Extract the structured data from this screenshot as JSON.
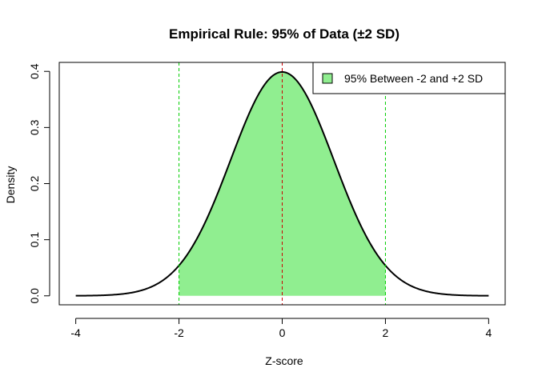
{
  "chart_data": {
    "type": "area",
    "title": "Empirical Rule: 95% of Data (±2 SD)",
    "xlabel": "Z-score",
    "ylabel": "Density",
    "xlim": [
      -4,
      4
    ],
    "ylim": [
      0,
      0.4
    ],
    "x_ticks": [
      -4,
      -2,
      0,
      2,
      4
    ],
    "y_ticks": [
      0.0,
      0.1,
      0.2,
      0.3,
      0.4
    ],
    "x_tick_labels": [
      "-4",
      "-2",
      "0",
      "2",
      "4"
    ],
    "y_tick_labels": [
      "0.0",
      "0.1",
      "0.2",
      "0.3",
      "0.4"
    ],
    "curve": {
      "distribution": "standard normal density",
      "x": [
        -4,
        -3.5,
        -3,
        -2.5,
        -2,
        -1.5,
        -1,
        -0.5,
        0,
        0.5,
        1,
        1.5,
        2,
        2.5,
        3,
        3.5,
        4
      ],
      "y": [
        0.0001,
        0.0009,
        0.0044,
        0.0175,
        0.054,
        0.1295,
        0.242,
        0.3521,
        0.3989,
        0.3521,
        0.242,
        0.1295,
        0.054,
        0.0175,
        0.0044,
        0.0009,
        0.0001
      ],
      "color": "#000000"
    },
    "shaded_region": {
      "from": -2,
      "to": 2,
      "color": "#90EE90"
    },
    "reference_lines": [
      {
        "x": -2,
        "color": "#00CD00",
        "style": "dashed"
      },
      {
        "x": 0,
        "color": "#CD0000",
        "style": "dashed"
      },
      {
        "x": 2,
        "color": "#00CD00",
        "style": "dashed"
      }
    ],
    "legend": {
      "position": "top-right",
      "entries": [
        {
          "label": "95% Between -2 and +2 SD",
          "color": "#90EE90"
        }
      ]
    },
    "grid": false
  }
}
